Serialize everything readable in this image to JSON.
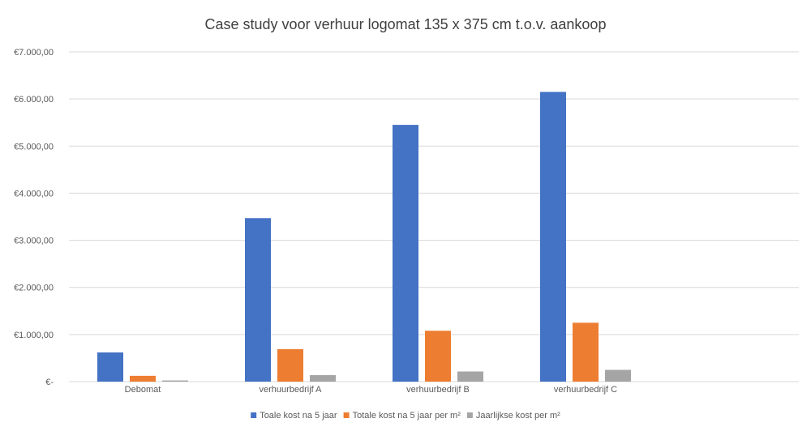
{
  "chart_data": {
    "type": "bar",
    "title": "Case study voor verhuur logomat 135 x 375 cm t.o.v. aankoop",
    "xlabel": "",
    "ylabel": "",
    "categories": [
      "Debomat",
      "verhuurbedrijf A",
      "verhuurbedrijf B",
      "verhuurbedrijf C"
    ],
    "series": [
      {
        "name": "Toale kost na 5 jaar",
        "color": "#4472C4",
        "values": [
          620,
          3470,
          5450,
          6150
        ]
      },
      {
        "name": "Totale kost na 5 jaar per m²",
        "color": "#ED7D31",
        "values": [
          123,
          690,
          1080,
          1250
        ]
      },
      {
        "name": "Jaarlijkse kost per m²",
        "color": "#A5A5A5",
        "values": [
          25,
          138,
          215,
          250
        ]
      }
    ],
    "ylim": [
      0,
      7000
    ],
    "yticks": [
      0,
      1000,
      2000,
      3000,
      4000,
      5000,
      6000,
      7000
    ],
    "ytick_labels": [
      "€-",
      "€1.000,00",
      "€2.000,00",
      "€3.000,00",
      "€4.000,00",
      "€5.000,00",
      "€6.000,00",
      "€7.000,00"
    ],
    "grid": true,
    "legend_position": "bottom"
  }
}
